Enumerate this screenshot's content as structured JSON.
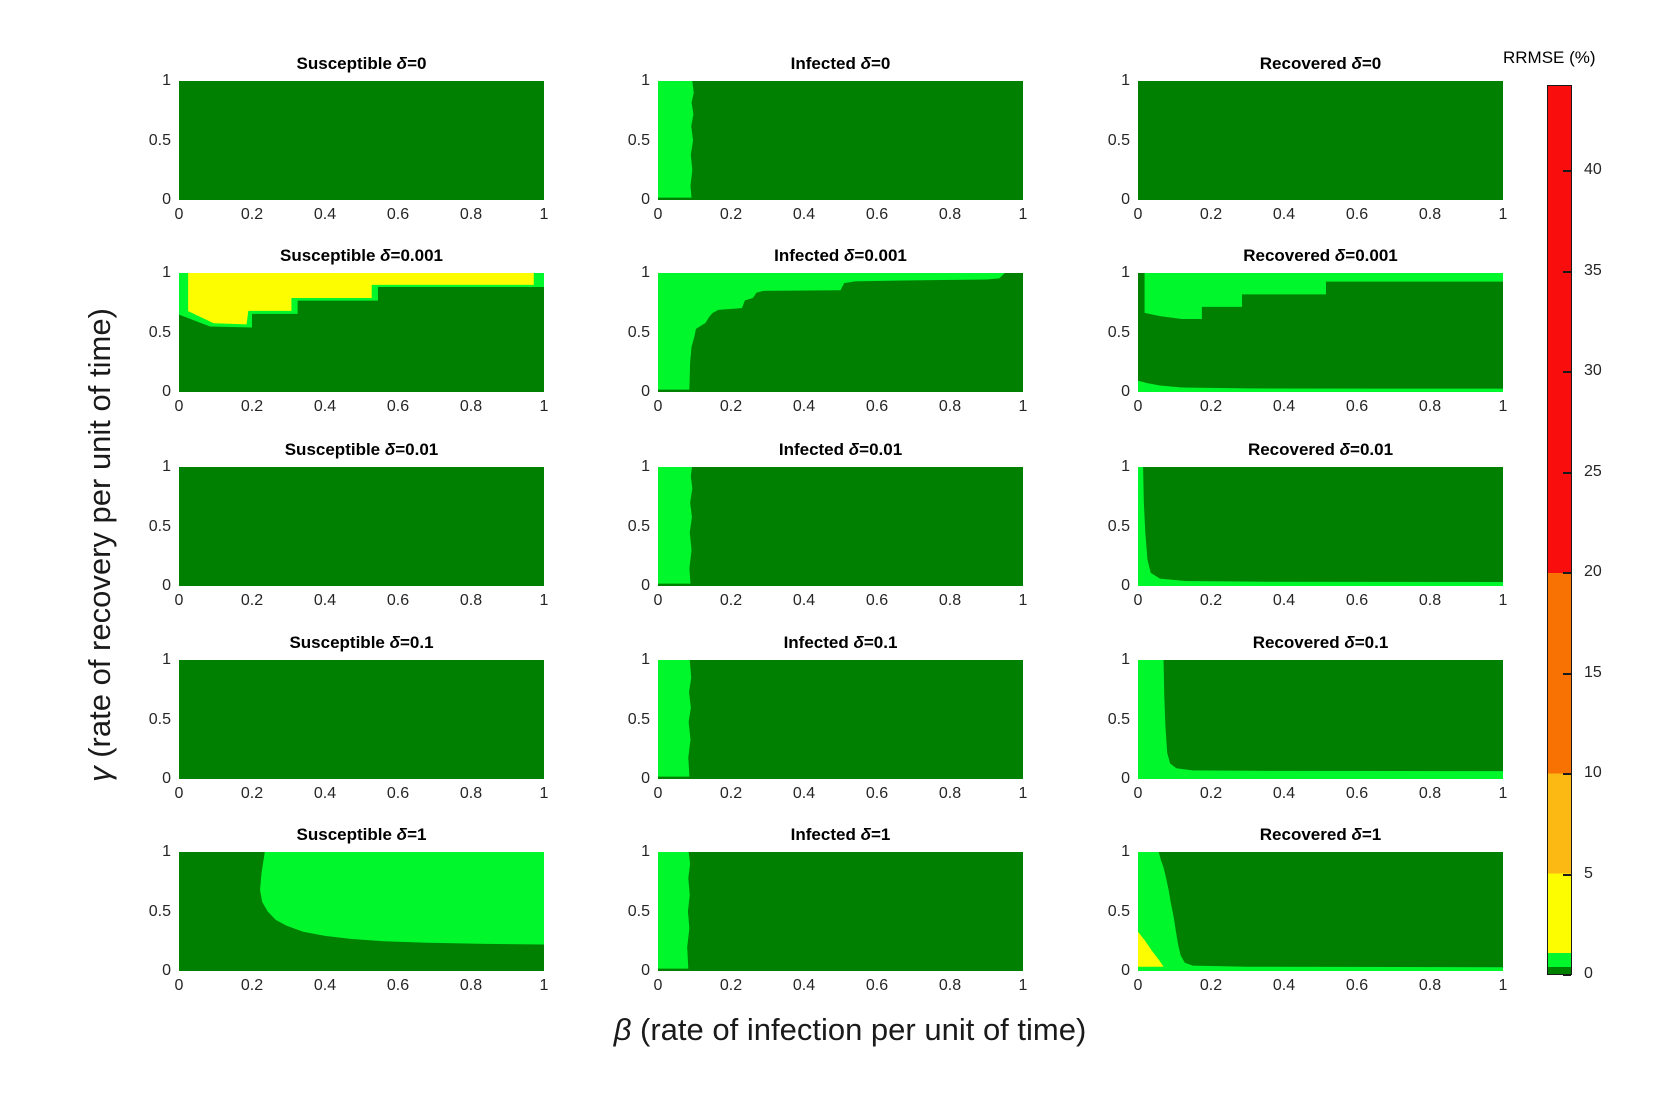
{
  "chart_data": {
    "type": "heatmap",
    "layout": {
      "rows": 5,
      "cols": 3,
      "legend_position": "right",
      "grid": false
    },
    "xlabel": {
      "symbol": "β",
      "text": " (rate of infection per unit of time)"
    },
    "ylabel": {
      "symbol": "γ",
      "text": " (rate of recovery per unit of time)"
    },
    "x_range": [
      0,
      1
    ],
    "y_range": [
      0,
      1
    ],
    "x_ticks": [
      {
        "v": 0,
        "label": "0"
      },
      {
        "v": 0.2,
        "label": "0.2"
      },
      {
        "v": 0.4,
        "label": "0.4"
      },
      {
        "v": 0.6,
        "label": "0.6"
      },
      {
        "v": 0.8,
        "label": "0.8"
      },
      {
        "v": 1,
        "label": "1"
      }
    ],
    "y_ticks": [
      {
        "v": 0,
        "label": "0"
      },
      {
        "v": 0.5,
        "label": "0.5"
      },
      {
        "v": 1,
        "label": "1"
      }
    ],
    "palette": {
      "dark_green": "#008000",
      "bright_green": "#00f72b",
      "yellow": "#fdfd00",
      "amber": "#fcb813",
      "orange": "#f87203",
      "red": "#fa0d0d"
    },
    "colorbar": {
      "title": "RRMSE (%)",
      "range": [
        0,
        44.3
      ],
      "ticks": [
        {
          "v": 0,
          "label": "0"
        },
        {
          "v": 5,
          "label": "5"
        },
        {
          "v": 10,
          "label": "10"
        },
        {
          "v": 15,
          "label": "15"
        },
        {
          "v": 20,
          "label": "20"
        },
        {
          "v": 25,
          "label": "25"
        },
        {
          "v": 30,
          "label": "30"
        },
        {
          "v": 35,
          "label": "35"
        },
        {
          "v": 40,
          "label": "40"
        }
      ],
      "segments": [
        {
          "color": "dark_green",
          "from": 0,
          "to": 0.35
        },
        {
          "color": "bright_green",
          "from": 0.35,
          "to": 1.05
        },
        {
          "color": "yellow",
          "from": 1.05,
          "to": 5
        },
        {
          "color": "amber",
          "from": 5,
          "to": 10
        },
        {
          "color": "orange",
          "from": 10,
          "to": 20
        },
        {
          "color": "red",
          "from": 20,
          "to": 44.3
        }
      ]
    },
    "subplots": [
      {
        "title": "Susceptible δ=0",
        "compartment": "Susceptible",
        "delta": "0",
        "base": "dark_green",
        "regions": []
      },
      {
        "title": "Infected δ=0",
        "compartment": "Infected",
        "delta": "0",
        "base": "dark_green",
        "regions": [
          {
            "color": "bright_green",
            "points": [
              [
                0,
                0.02
              ],
              [
                0.092,
                0.02
              ],
              [
                0.089,
                0.12
              ],
              [
                0.094,
                0.25
              ],
              [
                0.09,
                0.38
              ],
              [
                0.096,
                0.5
              ],
              [
                0.091,
                0.62
              ],
              [
                0.097,
                0.72
              ],
              [
                0.092,
                0.82
              ],
              [
                0.098,
                0.9
              ],
              [
                0.094,
                1
              ],
              [
                0,
                1
              ]
            ]
          }
        ]
      },
      {
        "title": "Recovered δ=0",
        "compartment": "Recovered",
        "delta": "0",
        "base": "dark_green",
        "regions": []
      },
      {
        "title": "Susceptible δ=0.001",
        "compartment": "Susceptible",
        "delta": "0.001",
        "base": "dark_green",
        "regions": [
          {
            "color": "bright_green",
            "points": [
              [
                0,
                1
              ],
              [
                0,
                0.65
              ],
              [
                0.085,
                0.55
              ],
              [
                0.2,
                0.542
              ],
              [
                0.2,
                0.657
              ],
              [
                0.325,
                0.657
              ],
              [
                0.325,
                0.768
              ],
              [
                0.545,
                0.768
              ],
              [
                0.545,
                0.882
              ],
              [
                1,
                0.882
              ],
              [
                1,
                1
              ]
            ]
          },
          {
            "color": "yellow",
            "points": [
              [
                0.025,
                1
              ],
              [
                0.025,
                0.68
              ],
              [
                0.095,
                0.578
              ],
              [
                0.185,
                0.568
              ],
              [
                0.19,
                0.682
              ],
              [
                0.308,
                0.682
              ],
              [
                0.308,
                0.79
              ],
              [
                0.528,
                0.79
              ],
              [
                0.528,
                0.9
              ],
              [
                0.972,
                0.9
              ],
              [
                0.972,
                1
              ]
            ]
          }
        ]
      },
      {
        "title": "Infected δ=0.001",
        "compartment": "Infected",
        "delta": "0.001",
        "base": "dark_green",
        "regions": [
          {
            "color": "bright_green",
            "points": [
              [
                0,
                0.02
              ],
              [
                0.086,
                0.02
              ],
              [
                0.088,
                0.25
              ],
              [
                0.092,
                0.38
              ],
              [
                0.1,
                0.47
              ],
              [
                0.104,
                0.53
              ],
              [
                0.13,
                0.58
              ],
              [
                0.14,
                0.63
              ],
              [
                0.15,
                0.665
              ],
              [
                0.165,
                0.69
              ],
              [
                0.23,
                0.705
              ],
              [
                0.238,
                0.77
              ],
              [
                0.26,
                0.79
              ],
              [
                0.27,
                0.835
              ],
              [
                0.29,
                0.85
              ],
              [
                0.5,
                0.855
              ],
              [
                0.51,
                0.915
              ],
              [
                0.54,
                0.93
              ],
              [
                0.75,
                0.94
              ],
              [
                0.9,
                0.945
              ],
              [
                0.935,
                0.955
              ],
              [
                0.95,
                1
              ],
              [
                0,
                1
              ]
            ]
          }
        ]
      },
      {
        "title": "Recovered δ=0.001",
        "compartment": "Recovered",
        "delta": "0.001",
        "base": "dark_green",
        "regions": [
          {
            "color": "bright_green",
            "points": [
              [
                0.018,
                1
              ],
              [
                0.018,
                0.665
              ],
              [
                0.06,
                0.638
              ],
              [
                0.12,
                0.613
              ],
              [
                0.175,
                0.613
              ],
              [
                0.175,
                0.715
              ],
              [
                0.285,
                0.715
              ],
              [
                0.285,
                0.82
              ],
              [
                0.515,
                0.82
              ],
              [
                0.515,
                0.928
              ],
              [
                1,
                0.928
              ],
              [
                1,
                1
              ]
            ]
          },
          {
            "color": "bright_green",
            "points": [
              [
                0,
                0
              ],
              [
                1,
                0
              ],
              [
                1,
                0.028
              ],
              [
                0.3,
                0.03
              ],
              [
                0.12,
                0.038
              ],
              [
                0.06,
                0.055
              ],
              [
                0.025,
                0.075
              ],
              [
                0,
                0.095
              ]
            ]
          }
        ]
      },
      {
        "title": "Susceptible δ=0.01",
        "compartment": "Susceptible",
        "delta": "0.01",
        "base": "dark_green",
        "regions": []
      },
      {
        "title": "Infected δ=0.01",
        "compartment": "Infected",
        "delta": "0.01",
        "base": "dark_green",
        "regions": [
          {
            "color": "bright_green",
            "points": [
              [
                0,
                0.02
              ],
              [
                0.089,
                0.02
              ],
              [
                0.086,
                0.15
              ],
              [
                0.092,
                0.3
              ],
              [
                0.087,
                0.45
              ],
              [
                0.093,
                0.58
              ],
              [
                0.088,
                0.7
              ],
              [
                0.094,
                0.82
              ],
              [
                0.09,
                0.92
              ],
              [
                0.093,
                1
              ],
              [
                0,
                1
              ]
            ]
          }
        ]
      },
      {
        "title": "Recovered δ=0.01",
        "compartment": "Recovered",
        "delta": "0.01",
        "base": "dark_green",
        "regions": [
          {
            "color": "bright_green",
            "points": [
              [
                0,
                1
              ],
              [
                0.014,
                1
              ],
              [
                0.016,
                0.7
              ],
              [
                0.02,
                0.45
              ],
              [
                0.026,
                0.22
              ],
              [
                0.035,
                0.11
              ],
              [
                0.06,
                0.062
              ],
              [
                0.13,
                0.042
              ],
              [
                0.35,
                0.036
              ],
              [
                1,
                0.034
              ],
              [
                1,
                0
              ],
              [
                0,
                0
              ]
            ]
          }
        ]
      },
      {
        "title": "Susceptible δ=0.1",
        "compartment": "Susceptible",
        "delta": "0.1",
        "base": "dark_green",
        "regions": []
      },
      {
        "title": "Infected δ=0.1",
        "compartment": "Infected",
        "delta": "0.1",
        "base": "dark_green",
        "regions": [
          {
            "color": "bright_green",
            "points": [
              [
                0,
                0.02
              ],
              [
                0.086,
                0.02
              ],
              [
                0.083,
                0.18
              ],
              [
                0.089,
                0.33
              ],
              [
                0.084,
                0.48
              ],
              [
                0.09,
                0.6
              ],
              [
                0.085,
                0.73
              ],
              [
                0.091,
                0.85
              ],
              [
                0.087,
                1
              ],
              [
                0,
                1
              ]
            ]
          }
        ]
      },
      {
        "title": "Recovered δ=0.1",
        "compartment": "Recovered",
        "delta": "0.1",
        "base": "dark_green",
        "regions": [
          {
            "color": "bright_green",
            "points": [
              [
                0,
                1
              ],
              [
                0.07,
                1
              ],
              [
                0.072,
                0.7
              ],
              [
                0.075,
                0.45
              ],
              [
                0.08,
                0.22
              ],
              [
                0.088,
                0.13
              ],
              [
                0.105,
                0.09
              ],
              [
                0.15,
                0.072
              ],
              [
                0.4,
                0.068
              ],
              [
                1,
                0.066
              ],
              [
                1,
                0
              ],
              [
                0,
                0
              ]
            ]
          }
        ]
      },
      {
        "title": "Susceptible δ=1",
        "compartment": "Susceptible",
        "delta": "1",
        "base": "dark_green",
        "regions": [
          {
            "color": "bright_green",
            "points": [
              [
                0.235,
                1
              ],
              [
                0.226,
                0.82
              ],
              [
                0.222,
                0.68
              ],
              [
                0.228,
                0.58
              ],
              [
                0.243,
                0.5
              ],
              [
                0.265,
                0.43
              ],
              [
                0.295,
                0.38
              ],
              [
                0.34,
                0.33
              ],
              [
                0.4,
                0.295
              ],
              [
                0.47,
                0.27
              ],
              [
                0.56,
                0.25
              ],
              [
                0.68,
                0.237
              ],
              [
                0.84,
                0.228
              ],
              [
                1,
                0.223
              ],
              [
                1,
                1
              ]
            ]
          }
        ]
      },
      {
        "title": "Infected δ=1",
        "compartment": "Infected",
        "delta": "1",
        "base": "dark_green",
        "regions": [
          {
            "color": "bright_green",
            "points": [
              [
                0,
                0.02
              ],
              [
                0.083,
                0.02
              ],
              [
                0.08,
                0.2
              ],
              [
                0.086,
                0.36
              ],
              [
                0.082,
                0.5
              ],
              [
                0.087,
                0.64
              ],
              [
                0.083,
                0.78
              ],
              [
                0.088,
                0.9
              ],
              [
                0.084,
                1
              ],
              [
                0,
                1
              ]
            ]
          }
        ]
      },
      {
        "title": "Recovered δ=1",
        "compartment": "Recovered",
        "delta": "1",
        "base": "dark_green",
        "regions": [
          {
            "color": "bright_green",
            "points": [
              [
                0,
                0
              ],
              [
                1,
                0
              ],
              [
                1,
                0.032
              ],
              [
                0.3,
                0.036
              ],
              [
                0.15,
                0.045
              ],
              [
                0.128,
                0.07
              ],
              [
                0.117,
                0.13
              ],
              [
                0.11,
                0.22
              ],
              [
                0.104,
                0.33
              ],
              [
                0.098,
                0.45
              ],
              [
                0.09,
                0.57
              ],
              [
                0.084,
                0.68
              ],
              [
                0.077,
                0.78
              ],
              [
                0.07,
                0.87
              ],
              [
                0.062,
                0.94
              ],
              [
                0.057,
                1
              ],
              [
                0,
                1
              ]
            ]
          },
          {
            "color": "yellow",
            "points": [
              [
                0,
                0.33
              ],
              [
                0.018,
                0.26
              ],
              [
                0.038,
                0.17
              ],
              [
                0.058,
                0.09
              ],
              [
                0.068,
                0.045
              ],
              [
                0.07,
                0.036
              ],
              [
                0,
                0.036
              ]
            ]
          }
        ]
      }
    ]
  }
}
